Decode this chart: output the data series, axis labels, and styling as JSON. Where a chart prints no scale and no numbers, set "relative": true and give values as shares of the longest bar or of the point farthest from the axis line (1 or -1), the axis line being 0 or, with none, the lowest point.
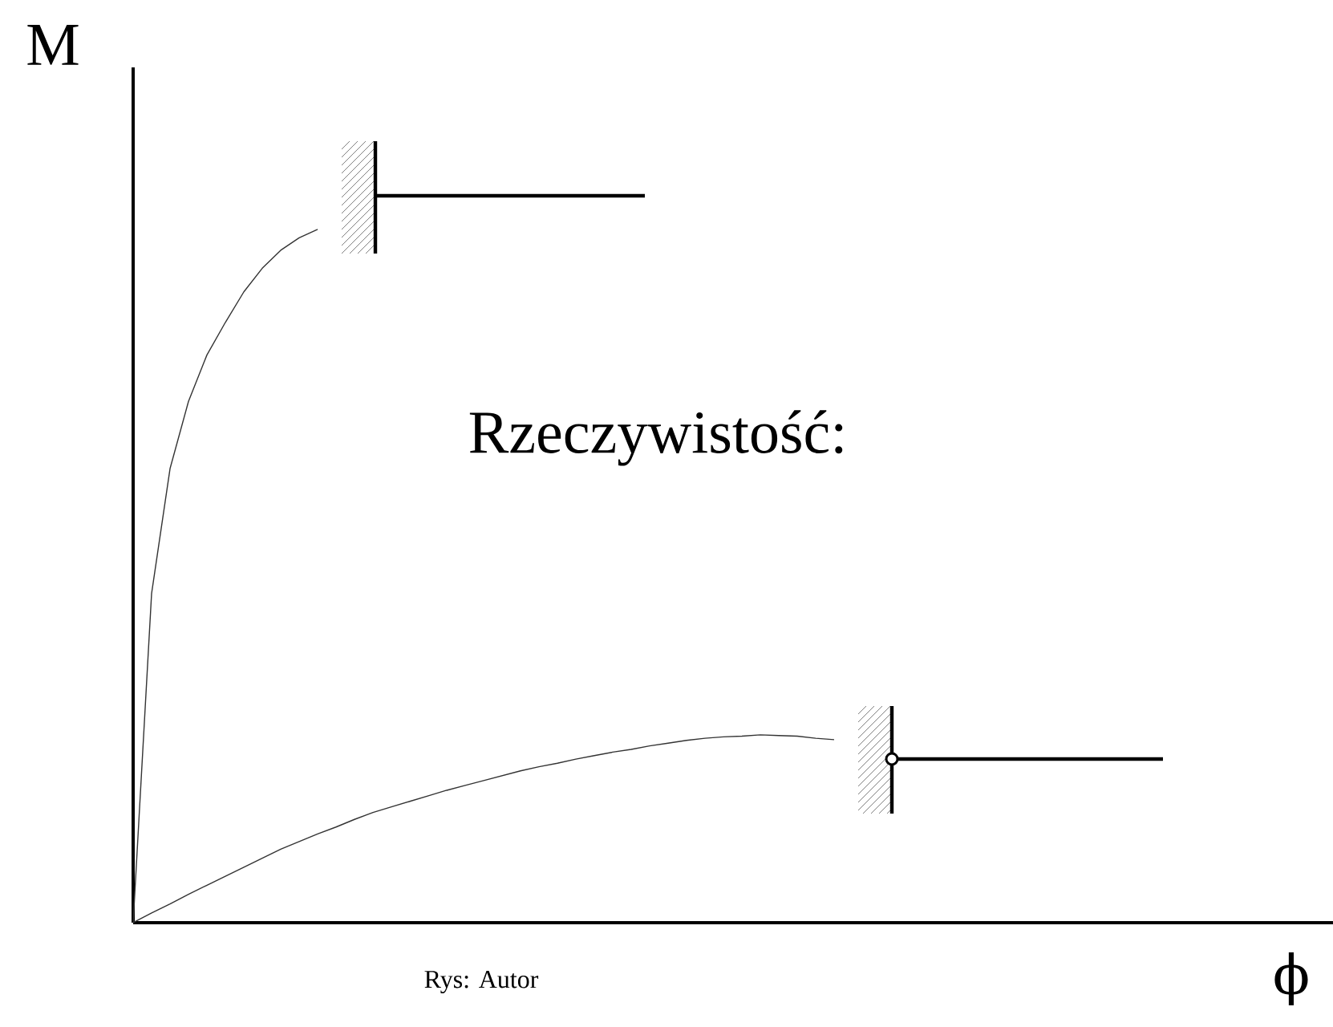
{
  "chart_data": {
    "type": "line",
    "relative": true,
    "ylabel": "M",
    "annotations": [
      "Rzeczywistość:",
      "Rys: Autor",
      "ϕ"
    ],
    "marker": "none",
    "line_style": "solid",
    "categories": [
      null,
      null,
      null,
      null,
      null,
      null,
      null,
      null,
      null,
      null,
      null,
      null,
      null,
      null,
      null,
      null,
      null,
      null,
      null,
      null,
      null,
      null,
      null,
      null,
      null,
      null,
      null,
      null,
      null,
      null,
      null,
      null,
      null,
      null,
      null,
      null,
      null,
      null,
      null
    ],
    "series": [
      {
        "color": "#333333",
        "values": [
          0,
          0.475,
          0.655,
          0.752,
          0.819,
          0.866,
          0.91,
          0.944,
          0.97,
          0.988,
          1.0,
          null,
          null,
          null,
          null,
          null,
          null,
          null,
          null,
          null,
          null,
          null,
          null,
          null,
          null,
          null,
          null,
          null,
          null,
          null,
          null,
          null,
          null,
          null,
          null,
          null,
          null,
          null,
          null
        ]
      },
      {
        "color": "#333333",
        "values": [
          0,
          0.014,
          0.027,
          0.041,
          0.054,
          0.067,
          0.08,
          0.093,
          0.106,
          0.117,
          0.128,
          0.138,
          0.149,
          0.159,
          0.167,
          0.175,
          0.183,
          0.191,
          0.198,
          0.205,
          0.212,
          0.219,
          0.225,
          0.23,
          0.236,
          0.241,
          0.246,
          0.25,
          0.255,
          0.259,
          0.263,
          0.266,
          0.268,
          0.269,
          0.271,
          0.27,
          0.269,
          0.266,
          0.264
        ]
      }
    ]
  }
}
